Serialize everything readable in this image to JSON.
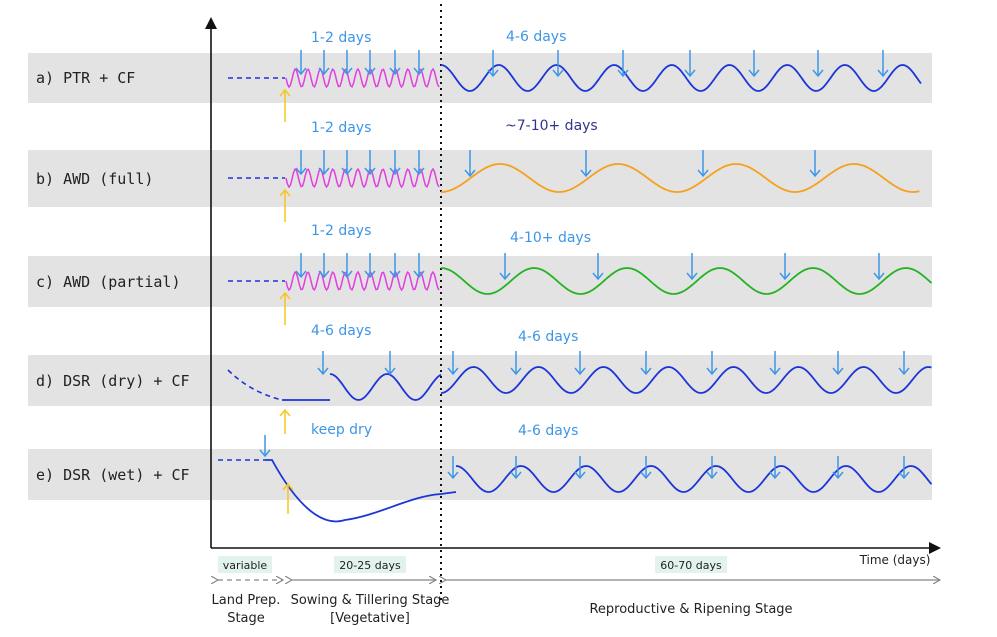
{
  "colors": {
    "band": "#e3e3e3",
    "blue": "#1b35d8",
    "magenta": "#e23ee0",
    "orange": "#f5a11c",
    "green": "#22b41e",
    "arrow": "#3d96e6",
    "yellow": "#f7c51c",
    "label_blue": "#3d96e6",
    "label_navy": "#33348f",
    "axis": "#111111",
    "stage_fill": "#e2f3ee",
    "stage_arrow": "#888888"
  },
  "rows": [
    {
      "label": "a) PTR + CF",
      "interval_early": "1-2 days",
      "interval_late": "4-6 days",
      "late_color": "blue"
    },
    {
      "label": "b) AWD (full)",
      "interval_early": "1-2 days",
      "interval_late": "~7-10+ days",
      "late_color": "orange"
    },
    {
      "label": "c) AWD (partial)",
      "interval_early": "1-2 days",
      "interval_late": "4-10+ days",
      "late_color": "green"
    },
    {
      "label": "d) DSR (dry) + CF",
      "interval_early": "4-6 days",
      "interval_late": "4-6 days",
      "late_color": "blue"
    },
    {
      "label": "e) DSR (wet) + CF",
      "interval_early": "keep dry",
      "interval_late": "4-6 days",
      "late_color": "blue"
    }
  ],
  "axis": {
    "x_label": "Time (days)"
  },
  "stages": [
    {
      "duration": "variable",
      "name_line1": "Land Prep.",
      "name_line2": "Stage"
    },
    {
      "duration": "20-25 days",
      "name_line1": "Sowing & Tillering Stage",
      "name_line2": "[Vegetative]"
    },
    {
      "duration": "60-70 days",
      "name_line1": "Reproductive & Ripening Stage",
      "name_line2": ""
    }
  ]
}
